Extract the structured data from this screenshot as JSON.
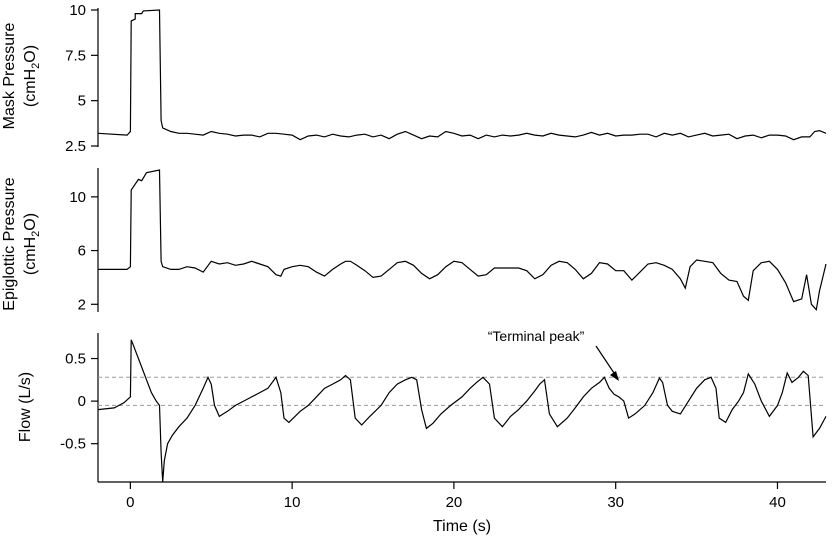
{
  "chart_data": [
    {
      "type": "line",
      "ylabel_line1": "Mask Pressure",
      "ylabel_line2_main": "(cmH",
      "ylabel_line2_sub": "2",
      "ylabel_line2_end": "O)",
      "ylim": [
        2.5,
        10
      ],
      "yticks": [
        2.5,
        5,
        7.5,
        10
      ],
      "ytick_labels": [
        "2.5",
        "5",
        "7.5",
        "10"
      ],
      "series": [
        {
          "x": [
            -2.0,
            -0.2,
            0.0,
            0.05,
            0.3,
            0.3,
            0.7,
            0.8,
            1.8,
            1.9,
            2.0,
            2.5,
            3.0,
            3.5,
            4.0,
            4.5,
            5.0,
            5.5,
            6.0,
            6.5,
            7.0,
            7.5,
            8.0,
            8.5,
            9.0,
            9.5,
            10.0,
            10.5,
            11.0,
            11.5,
            12.0,
            12.5,
            13.0,
            13.5,
            14.0,
            14.5,
            15.0,
            15.5,
            16.0,
            16.5,
            17.0,
            17.5,
            18.0,
            18.5,
            19.0,
            19.5,
            20.0,
            20.5,
            21.0,
            21.5,
            22.0,
            22.5,
            23.0,
            23.5,
            24.0,
            24.5,
            25.0,
            25.5,
            26.0,
            26.5,
            27.0,
            27.5,
            28.0,
            28.5,
            29.0,
            29.5,
            30.0,
            30.5,
            31.0,
            31.5,
            32.0,
            32.5,
            33.0,
            33.5,
            34.0,
            34.5,
            35.0,
            35.5,
            36.0,
            36.5,
            37.0,
            37.5,
            38.0,
            38.5,
            39.0,
            39.5,
            40.0,
            40.5,
            41.0,
            41.5,
            42.0,
            42.3,
            42.6,
            43.0
          ],
          "y": [
            3.2,
            3.1,
            3.3,
            9.4,
            9.5,
            9.8,
            9.8,
            9.95,
            10.0,
            3.9,
            3.5,
            3.3,
            3.2,
            3.2,
            3.15,
            3.1,
            3.3,
            3.2,
            3.15,
            3.05,
            3.1,
            3.1,
            3.0,
            3.2,
            3.2,
            3.15,
            3.1,
            2.85,
            3.05,
            3.1,
            3.0,
            3.15,
            3.05,
            3.0,
            3.1,
            3.15,
            3.0,
            3.1,
            2.9,
            3.15,
            3.3,
            3.1,
            2.9,
            3.05,
            3.0,
            3.3,
            3.2,
            3.05,
            3.1,
            2.9,
            3.1,
            3.0,
            3.1,
            3.05,
            3.1,
            3.2,
            3.1,
            3.05,
            3.2,
            3.1,
            3.05,
            3.0,
            3.1,
            3.25,
            3.1,
            3.2,
            3.05,
            3.1,
            3.1,
            3.15,
            3.15,
            3.0,
            3.2,
            3.1,
            3.2,
            3.0,
            3.1,
            3.2,
            3.05,
            3.1,
            3.15,
            2.9,
            3.05,
            3.1,
            2.95,
            3.1,
            3.1,
            3.05,
            2.85,
            3.0,
            3.0,
            3.3,
            3.35,
            3.2
          ]
        }
      ]
    },
    {
      "type": "line",
      "ylabel_line1": "Epiglottic Pressure",
      "ylabel_line2_main": "(cmH",
      "ylabel_line2_sub": "2",
      "ylabel_line2_end": "O)",
      "ylim": [
        1.5,
        12
      ],
      "yticks": [
        2,
        6,
        10
      ],
      "ytick_labels": [
        "2",
        "6",
        "10"
      ],
      "series": [
        {
          "x": [
            -2.0,
            -0.2,
            0.0,
            0.05,
            0.5,
            0.7,
            1.0,
            1.8,
            1.9,
            2.0,
            2.5,
            3.0,
            3.5,
            4.0,
            4.5,
            5.0,
            5.5,
            6.0,
            6.5,
            7.0,
            7.5,
            8.0,
            8.5,
            9.0,
            9.3,
            9.5,
            10.0,
            10.5,
            11.0,
            11.5,
            12.0,
            12.5,
            13.0,
            13.3,
            13.6,
            14.0,
            14.5,
            15.0,
            15.5,
            16.0,
            16.5,
            17.0,
            17.5,
            18.0,
            18.5,
            19.0,
            19.5,
            20.0,
            20.5,
            21.0,
            21.5,
            22.0,
            22.5,
            23.0,
            23.5,
            24.0,
            24.5,
            25.0,
            25.5,
            26.0,
            26.5,
            27.0,
            27.5,
            28.0,
            28.5,
            29.0,
            29.5,
            30.0,
            30.5,
            31.0,
            31.5,
            32.0,
            32.5,
            33.0,
            33.5,
            34.0,
            34.3,
            34.6,
            35.0,
            35.5,
            36.0,
            36.5,
            37.0,
            37.5,
            37.9,
            38.2,
            38.5,
            39.0,
            39.5,
            40.0,
            40.5,
            41.0,
            41.5,
            41.8,
            42.1,
            42.4,
            42.6,
            43.0
          ],
          "y": [
            4.6,
            4.6,
            4.8,
            10.5,
            11.3,
            11.2,
            11.8,
            12.0,
            5.2,
            4.8,
            4.6,
            4.6,
            4.8,
            4.7,
            4.4,
            5.2,
            5.0,
            5.1,
            4.9,
            5.0,
            5.2,
            5.0,
            4.8,
            4.2,
            4.1,
            4.6,
            4.8,
            4.9,
            4.8,
            4.4,
            4.1,
            4.6,
            5.0,
            5.2,
            5.2,
            4.9,
            4.5,
            4.0,
            4.1,
            4.6,
            5.1,
            5.2,
            4.9,
            4.3,
            3.9,
            4.2,
            4.8,
            5.2,
            5.1,
            4.6,
            4.1,
            4.2,
            4.7,
            4.7,
            4.7,
            4.7,
            4.5,
            3.9,
            4.2,
            4.9,
            5.2,
            5.1,
            4.6,
            3.9,
            4.3,
            5.1,
            5.0,
            4.5,
            4.5,
            3.8,
            4.4,
            5.0,
            5.1,
            4.9,
            4.6,
            3.9,
            3.2,
            4.8,
            5.3,
            5.2,
            5.1,
            4.3,
            3.8,
            3.7,
            2.6,
            2.3,
            4.5,
            5.1,
            5.2,
            4.6,
            3.6,
            2.2,
            2.4,
            4.2,
            2.0,
            1.6,
            3.0,
            5.0
          ]
        }
      ]
    },
    {
      "type": "line",
      "ylabel": "Flow (L/s)",
      "xlabel": "Time (s)",
      "xlim": [
        -2,
        43
      ],
      "xticks": [
        0,
        10,
        20,
        30,
        40
      ],
      "xtick_labels": [
        "0",
        "10",
        "20",
        "30",
        "40"
      ],
      "ylim": [
        -0.95,
        0.8
      ],
      "yticks": [
        -0.5,
        0,
        0.5
      ],
      "ytick_labels": [
        "-0.5",
        "0",
        "0.5"
      ],
      "reference_lines": [
        0.28,
        -0.05
      ],
      "annotation": {
        "text": "“Terminal peak”",
        "x": 30.3,
        "y": 0.2
      },
      "series": [
        {
          "x": [
            -2.0,
            -1.0,
            -0.4,
            0.0,
            0.05,
            0.2,
            0.4,
            0.7,
            1.0,
            1.3,
            1.6,
            1.8,
            1.9,
            2.0,
            2.1,
            2.3,
            2.6,
            3.0,
            3.5,
            4.0,
            4.5,
            4.8,
            5.0,
            5.2,
            5.5,
            6.0,
            6.5,
            7.0,
            7.5,
            8.0,
            8.5,
            9.0,
            9.3,
            9.5,
            9.8,
            10.5,
            11.0,
            11.5,
            12.0,
            12.5,
            13.0,
            13.3,
            13.6,
            13.9,
            14.3,
            14.8,
            15.5,
            16.0,
            16.5,
            17.0,
            17.4,
            17.7,
            18.0,
            18.3,
            18.7,
            19.2,
            19.8,
            20.5,
            21.0,
            21.4,
            21.8,
            22.2,
            22.5,
            23.0,
            23.5,
            24.0,
            24.5,
            25.0,
            25.3,
            25.6,
            25.9,
            26.4,
            27.0,
            27.5,
            28.0,
            28.5,
            29.0,
            29.3,
            29.6,
            29.9,
            30.2,
            30.5,
            30.8,
            31.2,
            31.8,
            32.3,
            32.7,
            32.9,
            33.2,
            33.5,
            34.0,
            34.5,
            35.0,
            35.5,
            35.9,
            36.2,
            36.4,
            36.8,
            37.2,
            37.6,
            37.9,
            38.2,
            38.6,
            39.0,
            39.5,
            40.0,
            40.3,
            40.6,
            40.9,
            41.3,
            41.6,
            41.9,
            42.2,
            42.6,
            43.0
          ],
          "y": [
            -0.1,
            -0.08,
            -0.02,
            0.05,
            0.72,
            0.65,
            0.55,
            0.4,
            0.25,
            0.1,
            0.0,
            -0.05,
            -0.6,
            -0.95,
            -0.7,
            -0.5,
            -0.4,
            -0.3,
            -0.2,
            -0.05,
            0.15,
            0.28,
            0.2,
            -0.05,
            -0.18,
            -0.12,
            -0.05,
            0.0,
            0.05,
            0.1,
            0.15,
            0.28,
            0.1,
            -0.2,
            -0.25,
            -0.12,
            -0.05,
            0.05,
            0.15,
            0.2,
            0.25,
            0.3,
            0.25,
            -0.2,
            -0.28,
            -0.18,
            -0.05,
            0.1,
            0.2,
            0.25,
            0.28,
            0.25,
            -0.1,
            -0.32,
            -0.26,
            -0.15,
            -0.05,
            0.05,
            0.15,
            0.22,
            0.28,
            0.2,
            -0.2,
            -0.3,
            -0.18,
            -0.1,
            0.0,
            0.12,
            0.2,
            0.25,
            -0.15,
            -0.3,
            -0.2,
            -0.08,
            0.05,
            0.15,
            0.22,
            0.28,
            0.15,
            0.08,
            0.05,
            0.0,
            -0.2,
            -0.15,
            -0.05,
            0.1,
            0.27,
            0.22,
            -0.05,
            -0.12,
            -0.15,
            0.0,
            0.15,
            0.25,
            0.28,
            0.15,
            -0.2,
            -0.25,
            -0.1,
            0.0,
            0.1,
            0.32,
            0.2,
            0.0,
            -0.18,
            -0.05,
            0.1,
            0.33,
            0.22,
            0.28,
            0.35,
            0.3,
            -0.42,
            -0.32,
            -0.18
          ]
        }
      ]
    }
  ]
}
